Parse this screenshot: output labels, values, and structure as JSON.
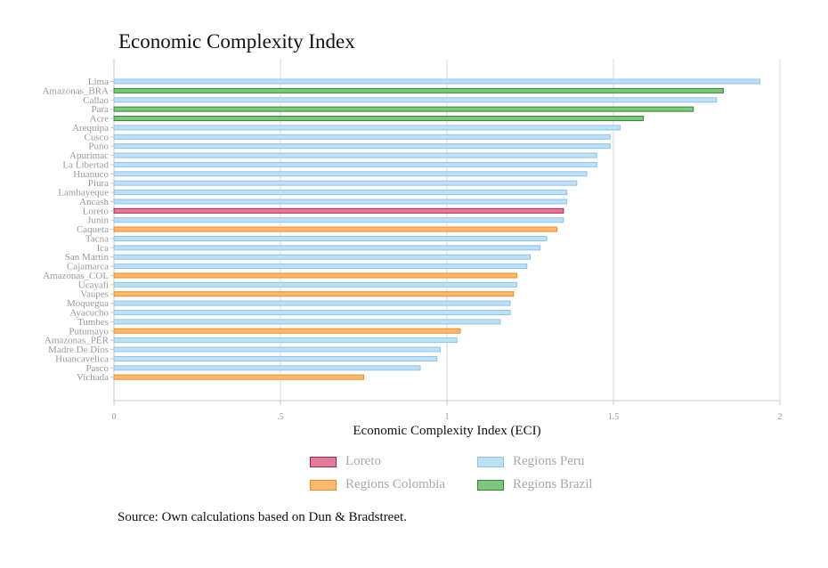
{
  "chart_data": {
    "type": "bar",
    "orientation": "horizontal",
    "title": "Economic Complexity Index",
    "xlabel": "Economic Complexity Index (ECI)",
    "ylabel": "",
    "xlim": [
      0,
      2
    ],
    "xticks": [
      {
        "value": 0,
        "label": "0"
      },
      {
        "value": 0.5,
        "label": ".5"
      },
      {
        "value": 1,
        "label": "1"
      },
      {
        "value": 1.5,
        "label": "1.5"
      },
      {
        "value": 2,
        "label": "2"
      }
    ],
    "grid": "vertical",
    "legend_position": "bottom",
    "groups": [
      {
        "name": "Loreto",
        "color": "#e07b9a",
        "border": "#b0204f"
      },
      {
        "name": "Regions Peru",
        "color": "#bfdff5",
        "border": "#8fc3e8"
      },
      {
        "name": "Regions Colombia",
        "color": "#ffb870",
        "border": "#ee8a25"
      },
      {
        "name": "Regions Brazil",
        "color": "#7fc47f",
        "border": "#2f8a2f"
      }
    ],
    "categories": [
      "Lima",
      "Amazonas_BRA",
      "Callao",
      "Para",
      "Acre",
      "Arequipa",
      "Cusco",
      "Puno",
      "Apurimac",
      "La Libertad",
      "Huanuco",
      "Piura",
      "Lambayeque",
      "Ancash",
      "Loreto",
      "Junin",
      "Caqueta",
      "Tacna",
      "Ica",
      "San Martin",
      "Cajamarca",
      "Amazonas_COL",
      "Ucayali",
      "Vaupes",
      "Moquegua",
      "Ayacucho",
      "Tumbes",
      "Putumayo",
      "Amazonas_PER",
      "Madre De Dios",
      "Huancavelica",
      "Pasco",
      "Vichada"
    ],
    "values": [
      1.94,
      1.83,
      1.81,
      1.74,
      1.59,
      1.52,
      1.49,
      1.49,
      1.45,
      1.45,
      1.42,
      1.39,
      1.36,
      1.36,
      1.35,
      1.35,
      1.33,
      1.3,
      1.28,
      1.25,
      1.24,
      1.21,
      1.21,
      1.2,
      1.19,
      1.19,
      1.16,
      1.04,
      1.03,
      0.98,
      0.97,
      0.92,
      0.75
    ],
    "group_index": [
      "Regions Peru",
      "Regions Brazil",
      "Regions Peru",
      "Regions Brazil",
      "Regions Brazil",
      "Regions Peru",
      "Regions Peru",
      "Regions Peru",
      "Regions Peru",
      "Regions Peru",
      "Regions Peru",
      "Regions Peru",
      "Regions Peru",
      "Regions Peru",
      "Loreto",
      "Regions Peru",
      "Regions Colombia",
      "Regions Peru",
      "Regions Peru",
      "Regions Peru",
      "Regions Peru",
      "Regions Colombia",
      "Regions Peru",
      "Regions Colombia",
      "Regions Peru",
      "Regions Peru",
      "Regions Peru",
      "Regions Colombia",
      "Regions Peru",
      "Regions Peru",
      "Regions Peru",
      "Regions Peru",
      "Regions Colombia"
    ]
  },
  "legend": {
    "loreto": "Loreto",
    "peru": "Regions Peru",
    "colombia": "Regions Colombia",
    "brazil": "Regions Brazil"
  },
  "source_note": "Source: Own calculations based on Dun & Bradstreet."
}
